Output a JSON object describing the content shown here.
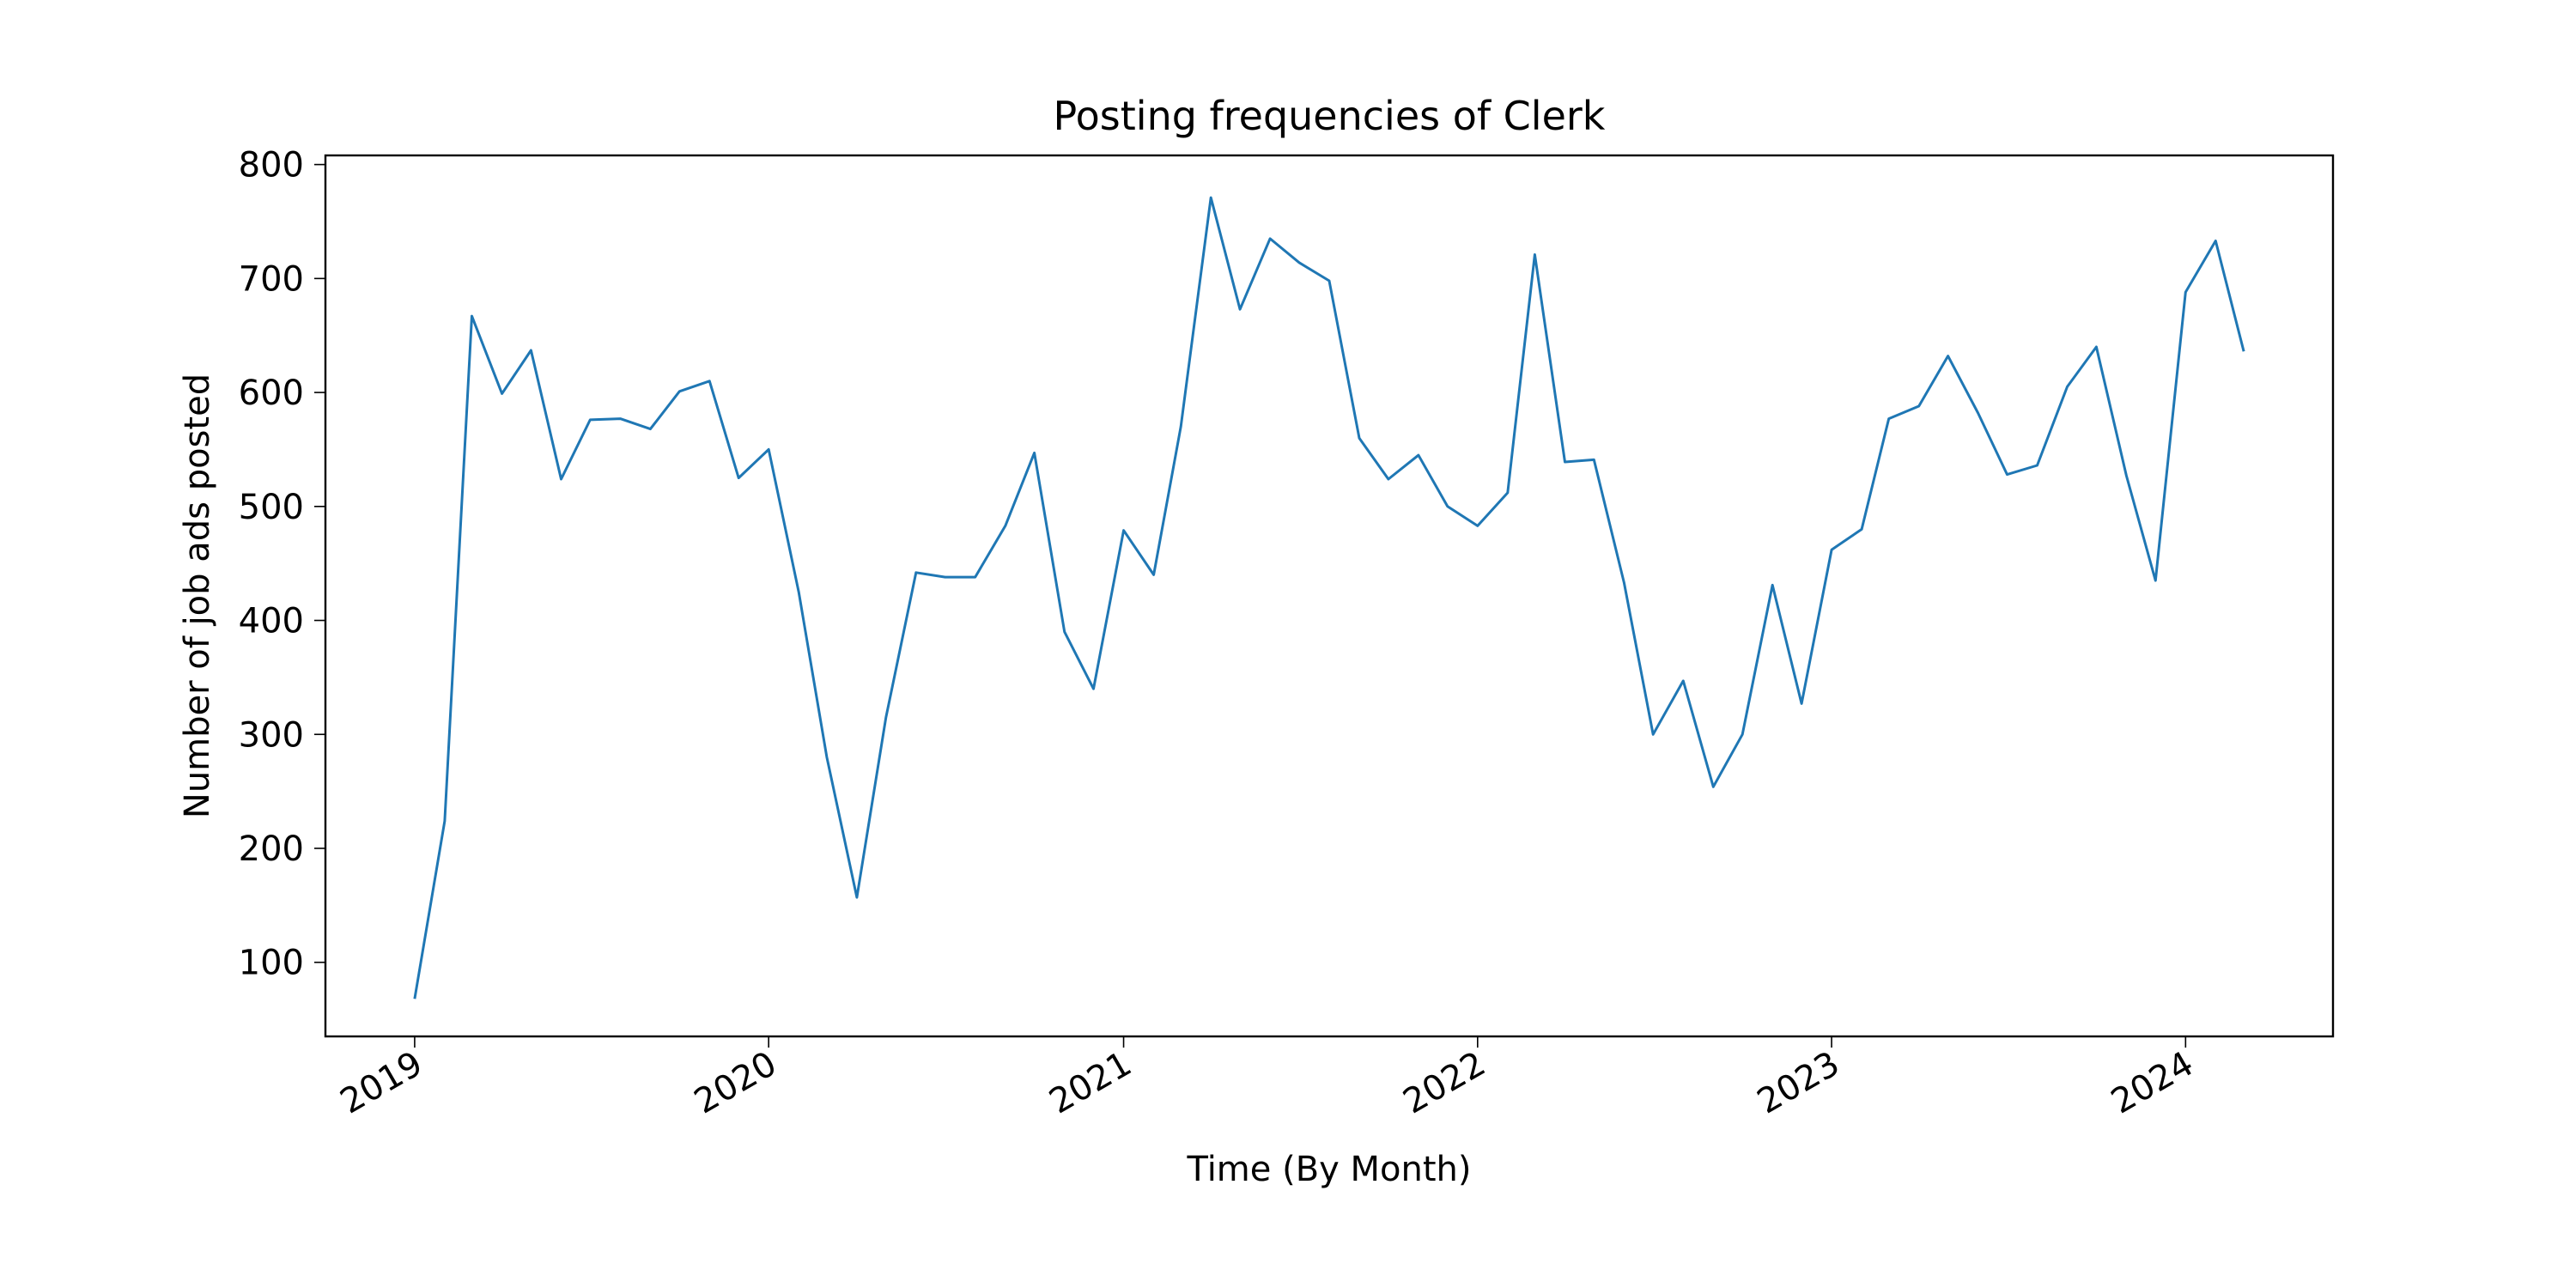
{
  "chart_data": {
    "type": "line",
    "title": "Posting frequencies of Clerk",
    "xlabel": "Time (By Month)",
    "ylabel": "Number of job ads posted",
    "x_ticks": [
      "2019",
      "2020",
      "2021",
      "2022",
      "2023",
      "2024"
    ],
    "y_ticks": [
      100,
      200,
      300,
      400,
      500,
      600,
      700,
      800
    ],
    "ylim": [
      35,
      808
    ],
    "xlim": [
      "2018-10-01",
      "2024-06-01"
    ],
    "grid": false,
    "line_color": "#1f77b4",
    "series": [
      {
        "x": [
          "2019-01",
          "2019-02",
          "2019-03",
          "2019-04",
          "2019-05",
          "2019-06",
          "2019-07",
          "2019-08",
          "2019-09",
          "2019-10",
          "2019-11",
          "2019-12",
          "2020-01",
          "2020-02",
          "2020-03",
          "2020-04",
          "2020-05",
          "2020-06",
          "2020-07",
          "2020-08",
          "2020-09",
          "2020-10",
          "2020-11",
          "2020-12",
          "2021-01",
          "2021-02",
          "2021-03",
          "2021-04",
          "2021-05",
          "2021-06",
          "2021-07",
          "2021-08",
          "2021-09",
          "2021-10",
          "2021-11",
          "2021-12",
          "2022-01",
          "2022-02",
          "2022-03",
          "2022-04",
          "2022-05",
          "2022-06",
          "2022-07",
          "2022-08",
          "2022-09",
          "2022-10",
          "2022-11",
          "2022-12",
          "2023-01",
          "2023-02",
          "2023-03",
          "2023-04",
          "2023-05",
          "2023-06",
          "2023-07",
          "2023-08",
          "2023-09",
          "2023-10",
          "2023-11",
          "2023-12",
          "2024-01",
          "2024-02",
          "2024-03"
        ],
        "values": [
          68,
          224,
          667,
          599,
          637,
          524,
          576,
          577,
          568,
          601,
          610,
          525,
          550,
          425,
          280,
          157,
          315,
          442,
          438,
          438,
          483,
          547,
          390,
          340,
          479,
          440,
          570,
          771,
          673,
          735,
          714,
          698,
          560,
          524,
          545,
          500,
          483,
          512,
          721,
          539,
          541,
          433,
          300,
          347,
          254,
          300,
          431,
          327,
          462,
          480,
          577,
          588,
          632,
          582,
          528,
          536,
          605,
          640,
          527,
          435,
          688,
          733,
          636
        ]
      }
    ]
  }
}
